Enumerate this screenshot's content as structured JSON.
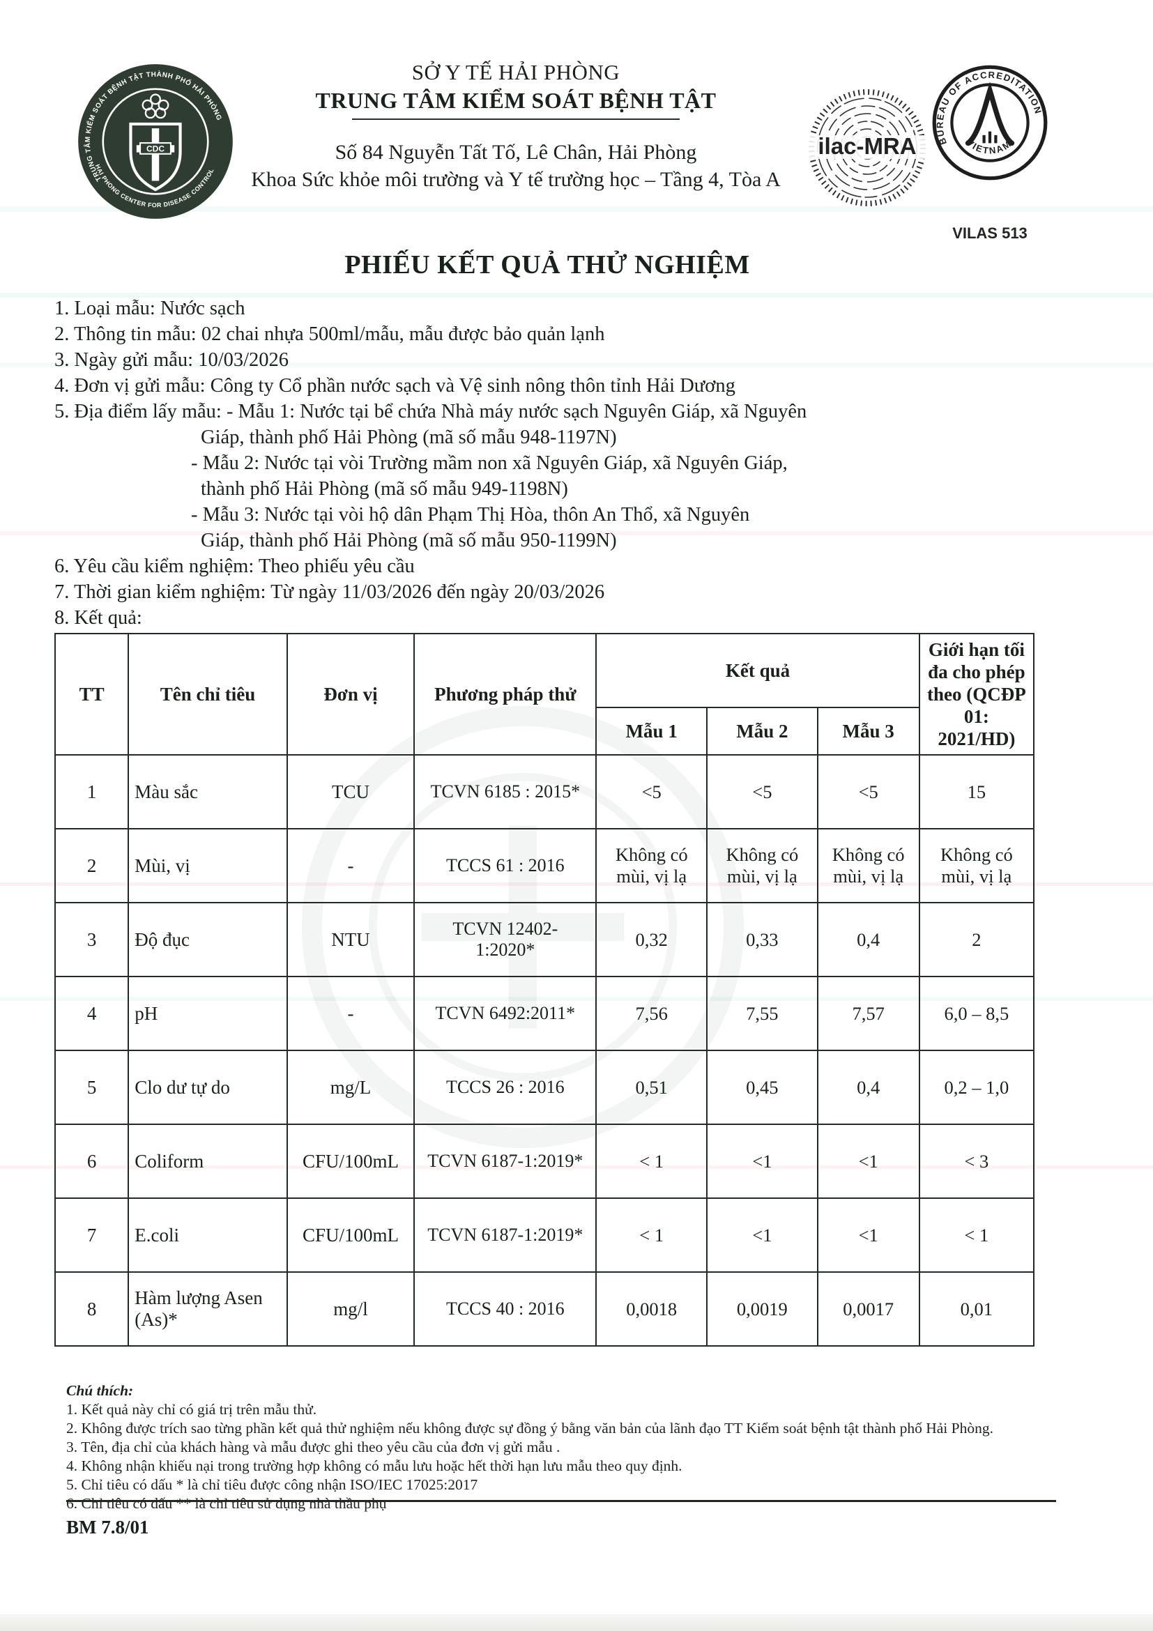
{
  "header": {
    "org_parent": "SỞ Y TẾ HẢI PHÒNG",
    "org_name": "TRUNG TÂM KIỂM SOÁT BỆNH TẬT",
    "address": "Số 84 Nguyễn Tất Tố, Lê Chân, Hải Phòng",
    "department": "Khoa Sức khỏe môi trường và Y tế trường học – Tầng 4, Tòa A",
    "logo": {
      "ring_top": "TRUNG TÂM KIỂM SOÁT BỆNH TẬT THÀNH PHỐ HẢI PHÒNG",
      "ring_bottom": "HAI PHONG CENTER FOR DISEASE CONTROL",
      "center": "CDC"
    },
    "accreditation": {
      "ilac": "ilac-MRA",
      "boa_arc": "BUREAU OF ACCREDITATION",
      "boa_bottom": "VIETNAM",
      "vilas": "VILAS 513"
    }
  },
  "title": "PHIẾU KẾT QUẢ THỬ NGHIỆM",
  "info_lines": [
    {
      "indent": 0,
      "text": "1. Loại mẫu: Nước sạch"
    },
    {
      "indent": 0,
      "text": "2. Thông tin mẫu: 02 chai nhựa 500ml/mẫu, mẫu được bảo quản lạnh"
    },
    {
      "indent": 0,
      "text": "3. Ngày gửi mẫu: 10/03/2026"
    },
    {
      "indent": 0,
      "text": "4. Đơn vị gửi mẫu: Công ty Cổ phần nước sạch và Vệ sinh nông thôn tỉnh Hải Dương"
    },
    {
      "indent": 0,
      "text": "5. Địa điểm lấy mẫu: - Mẫu 1: Nước tại bể chứa Nhà máy nước sạch Nguyên Giáp, xã Nguyên"
    },
    {
      "indent": 2,
      "text": "Giáp, thành phố Hải Phòng (mã số mẫu 948-1197N)"
    },
    {
      "indent": 1,
      "text": "- Mẫu 2: Nước tại vòi Trường mầm non xã Nguyên Giáp, xã Nguyên Giáp,"
    },
    {
      "indent": 2,
      "text": "thành phố Hải Phòng (mã số mẫu 949-1198N)"
    },
    {
      "indent": 1,
      "text": "- Mẫu 3: Nước tại vòi hộ dân Phạm Thị Hòa, thôn An Thổ, xã Nguyên"
    },
    {
      "indent": 2,
      "text": "Giáp, thành phố Hải Phòng (mã số mẫu 950-1199N)"
    },
    {
      "indent": 0,
      "text": "6. Yêu cầu kiểm nghiệm: Theo phiếu yêu cầu"
    },
    {
      "indent": 0,
      "text": "7. Thời gian kiểm nghiệm: Từ ngày 11/03/2026 đến ngày 20/03/2026"
    },
    {
      "indent": 0,
      "text": "8. Kết quả:"
    }
  ],
  "table": {
    "headers": {
      "tt": "TT",
      "name": "Tên chỉ tiêu",
      "unit": "Đơn vị",
      "method": "Phương pháp thử",
      "result_group": "Kết quả",
      "samples": [
        "Mẫu 1",
        "Mẫu 2",
        "Mẫu 3"
      ],
      "limit": "Giới hạn tối đa cho phép theo (QCĐP 01: 2021/HD)"
    },
    "rows": [
      {
        "tt": "1",
        "name": "Màu sắc",
        "unit": "TCU",
        "method": "TCVN 6185 : 2015*",
        "m1": "<5",
        "m2": "<5",
        "m3": "<5",
        "limit": "15"
      },
      {
        "tt": "2",
        "name": "Mùi, vị",
        "unit": "-",
        "method": "TCCS 61 : 2016",
        "m1": "Không có mùi, vị lạ",
        "m2": "Không có mùi, vị lạ",
        "m3": "Không có mùi, vị lạ",
        "limit": "Không có mùi, vị lạ"
      },
      {
        "tt": "3",
        "name": "Độ đục",
        "unit": "NTU",
        "method": "TCVN 12402-\n1:2020*",
        "m1": "0,32",
        "m2": "0,33",
        "m3": "0,4",
        "limit": "2"
      },
      {
        "tt": "4",
        "name": "pH",
        "unit": "-",
        "method": "TCVN 6492:2011*",
        "m1": "7,56",
        "m2": "7,55",
        "m3": "7,57",
        "limit": "6,0 – 8,5"
      },
      {
        "tt": "5",
        "name": "Clo dư tự do",
        "unit": "mg/L",
        "method": "TCCS 26 : 2016",
        "m1": "0,51",
        "m2": "0,45",
        "m3": "0,4",
        "limit": "0,2 – 1,0"
      },
      {
        "tt": "6",
        "name": "Coliform",
        "unit": "CFU/100mL",
        "method": "TCVN 6187-1:2019*",
        "m1": "< 1",
        "m2": "<1",
        "m3": "<1",
        "limit": "< 3"
      },
      {
        "tt": "7",
        "name": "E.coli",
        "unit": "CFU/100mL",
        "method": "TCVN 6187-1:2019*",
        "m1": "< 1",
        "m2": "<1",
        "m3": "<1",
        "limit": "< 1"
      },
      {
        "tt": "8",
        "name": "Hàm lượng Asen (As)*",
        "unit": "mg/l",
        "method": "TCCS 40 : 2016",
        "m1": "0,0018",
        "m2": "0,0019",
        "m3": "0,0017",
        "limit": "0,01"
      }
    ]
  },
  "notes": {
    "title": "Chú thích:",
    "items": [
      "1. Kết quả này chỉ có giá trị trên mẫu thử.",
      "2. Không được trích sao từng phần kết quả thử nghiệm nếu không được sự đồng ý bằng văn bản của lãnh đạo TT  Kiểm soát bệnh tật thành phố Hải Phòng.",
      "3. Tên, địa chỉ của khách hàng và mẫu được ghi theo yêu cầu của đơn vị gửi mẫu .",
      "4. Không nhận khiếu nại trong trường hợp không có mẫu lưu hoặc hết thời hạn lưu mẫu theo quy định.",
      "5. Chỉ tiêu có dấu * là chỉ tiêu được công nhận ISO/IEC 17025:2017",
      "6. Chỉ tiêu có dấu ** là chỉ tiêu sử dụng nhà thầu phụ"
    ]
  },
  "form_code": "BM 7.8/01"
}
